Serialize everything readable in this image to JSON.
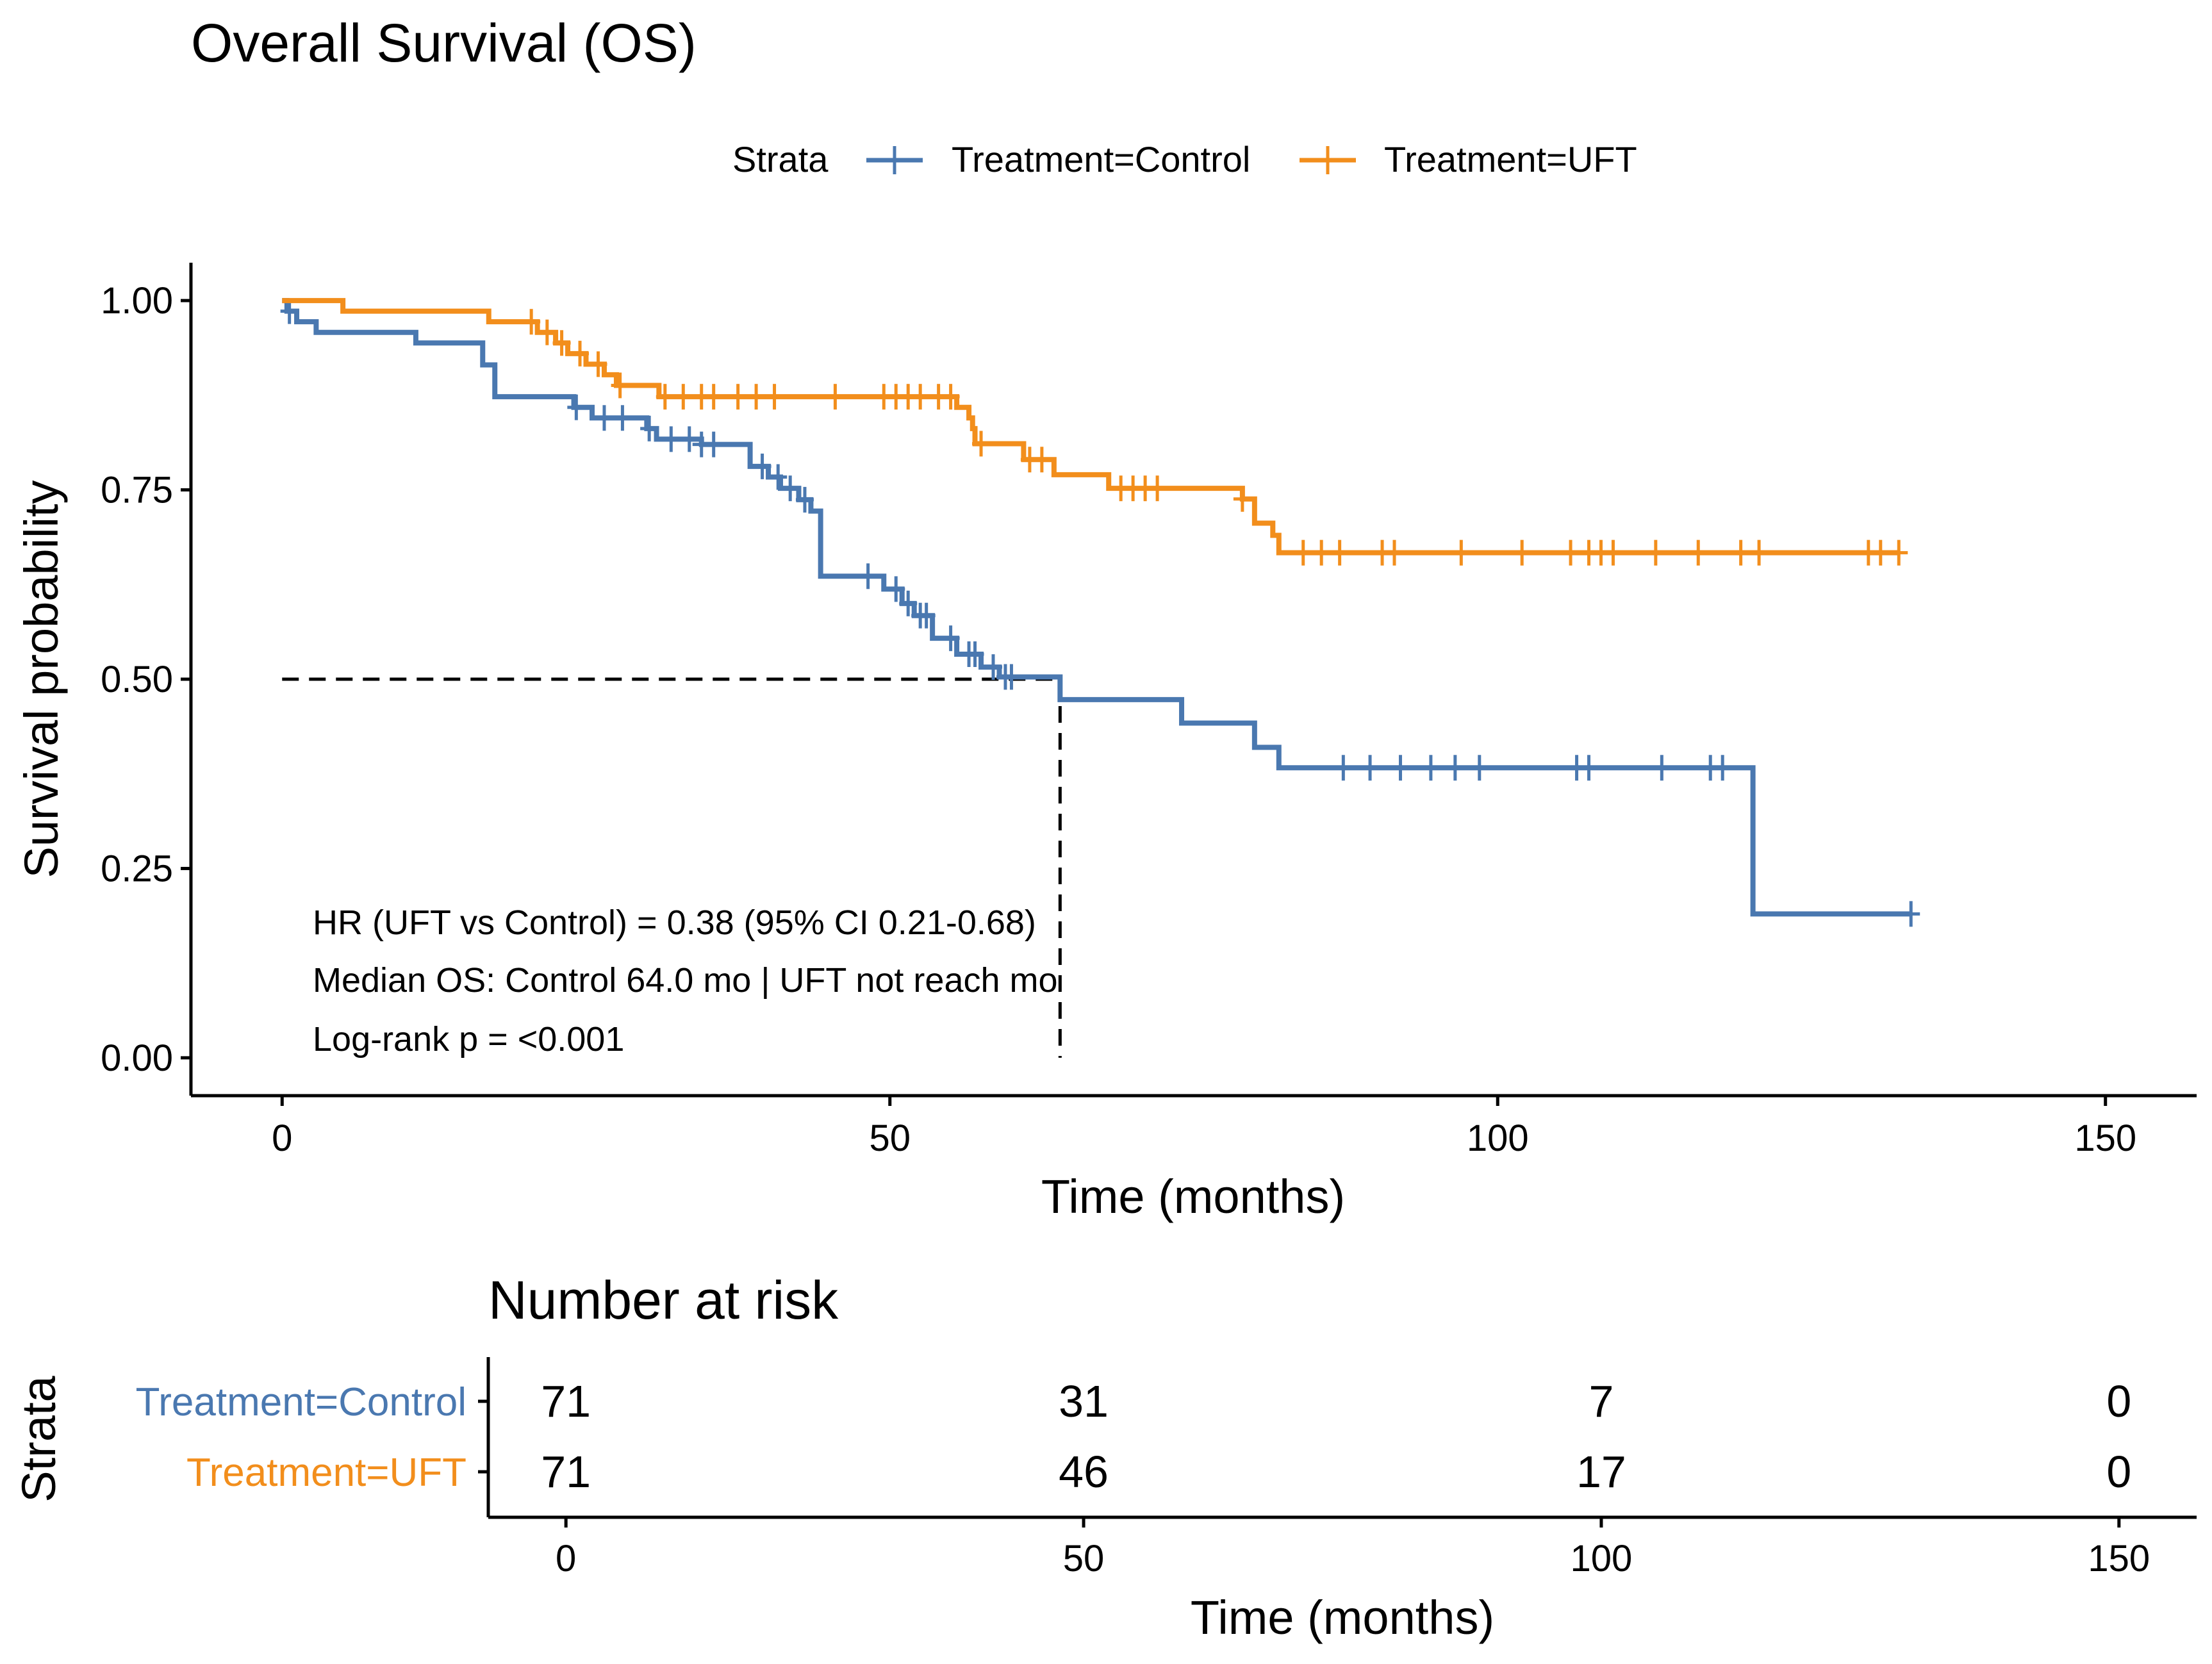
{
  "chart_data": {
    "type": "line",
    "subtype": "kaplan-meier-step",
    "title": "Overall Survival (OS)",
    "xlabel": "Time (months)",
    "ylabel": "Survival probability",
    "xlim": [
      -7.5,
      157.5
    ],
    "ylim": [
      -0.05,
      1.05
    ],
    "x_ticks": [
      0,
      50,
      100,
      150
    ],
    "x_tick_labels": [
      "0",
      "50",
      "100",
      "150"
    ],
    "y_ticks": [
      0,
      0.25,
      0.5,
      0.75,
      1.0
    ],
    "y_tick_labels": [
      "0.00",
      "0.25",
      "0.50",
      "0.75",
      "1.00"
    ],
    "grid": false,
    "legend": {
      "title": "Strata",
      "position": "top",
      "entries": [
        "Treatment=Control",
        "Treatment=UFT"
      ]
    },
    "series": [
      {
        "name": "Treatment=Control",
        "color": "#4a78b0",
        "steps": [
          [
            0,
            1.0
          ],
          [
            0.4,
            0.986
          ],
          [
            1.2,
            0.972
          ],
          [
            2.8,
            0.958
          ],
          [
            11,
            0.944
          ],
          [
            16.5,
            0.915
          ],
          [
            17.5,
            0.873
          ],
          [
            24,
            0.859
          ],
          [
            25.5,
            0.845
          ],
          [
            30,
            0.831
          ],
          [
            30.8,
            0.817
          ],
          [
            34.5,
            0.81
          ],
          [
            38.5,
            0.781
          ],
          [
            40,
            0.767
          ],
          [
            41,
            0.752
          ],
          [
            42.5,
            0.737
          ],
          [
            43.5,
            0.722
          ],
          [
            44.3,
            0.636
          ],
          [
            49.5,
            0.619
          ],
          [
            51,
            0.6
          ],
          [
            52,
            0.584
          ],
          [
            53.5,
            0.554
          ],
          [
            55.5,
            0.533
          ],
          [
            57.5,
            0.516
          ],
          [
            59,
            0.503
          ],
          [
            64,
            0.473
          ],
          [
            74,
            0.442
          ],
          [
            80,
            0.41
          ],
          [
            82,
            0.383
          ],
          [
            121,
            0.19
          ],
          [
            134,
            0.19
          ]
        ],
        "censor_times": [
          0.6,
          24.2,
          26.5,
          28,
          30.2,
          32,
          33.5,
          34.5,
          35.5,
          39.5,
          40.8,
          41.8,
          43,
          48.2,
          50.5,
          51.5,
          52.5,
          53,
          55,
          56.5,
          57,
          58.5,
          59.5,
          60,
          87.3,
          89.5,
          92,
          94.5,
          96.5,
          98.5,
          106.5,
          107.5,
          113.5,
          117.5,
          118.5,
          134
        ]
      },
      {
        "name": "Treatment=UFT",
        "color": "#f28e1c",
        "steps": [
          [
            0,
            1.0
          ],
          [
            5,
            0.986
          ],
          [
            17,
            0.972
          ],
          [
            21,
            0.958
          ],
          [
            22.5,
            0.944
          ],
          [
            23.5,
            0.93
          ],
          [
            25,
            0.916
          ],
          [
            26.5,
            0.902
          ],
          [
            27.5,
            0.888
          ],
          [
            31,
            0.873
          ],
          [
            55.5,
            0.859
          ],
          [
            56.5,
            0.845
          ],
          [
            56.8,
            0.831
          ],
          [
            57,
            0.811
          ],
          [
            61,
            0.79
          ],
          [
            63.5,
            0.77
          ],
          [
            68,
            0.752
          ],
          [
            79,
            0.738
          ],
          [
            80,
            0.706
          ],
          [
            81.5,
            0.69
          ],
          [
            82,
            0.667
          ],
          [
            133,
            0.667
          ]
        ],
        "censor_times": [
          20.5,
          21.8,
          23,
          24.5,
          26,
          27.8,
          31.5,
          33,
          34.5,
          35.5,
          37.5,
          39,
          40.5,
          45.5,
          49.5,
          50.5,
          51.5,
          52.5,
          54,
          55,
          57.5,
          61.5,
          62.5,
          69,
          70,
          71,
          72,
          79,
          84,
          85.5,
          87,
          90.5,
          91.5,
          97,
          102,
          106,
          107.5,
          108.5,
          109.5,
          113,
          116.5,
          120,
          121.5,
          130.5,
          131.5,
          133
        ]
      }
    ],
    "median_line": {
      "y": 0.5,
      "x_end": 64.0
    },
    "annotations": [
      "HR (UFT vs Control) = 0.38 (95% CI 0.21-0.68)",
      "Median OS: Control 64.0 mo | UFT not reach mo",
      "Log-rank p = <0.001"
    ],
    "risk_table": {
      "title": "Number at risk",
      "ylabel": "Strata",
      "xlabel": "Time (months)",
      "time_points": [
        0,
        50,
        100,
        150
      ],
      "rows": [
        {
          "name": "Treatment=Control",
          "color": "#4a78b0",
          "counts": [
            "71",
            "31",
            "7",
            "0"
          ]
        },
        {
          "name": "Treatment=UFT",
          "color": "#f28e1c",
          "counts": [
            "71",
            "46",
            "17",
            "0"
          ]
        }
      ]
    }
  }
}
